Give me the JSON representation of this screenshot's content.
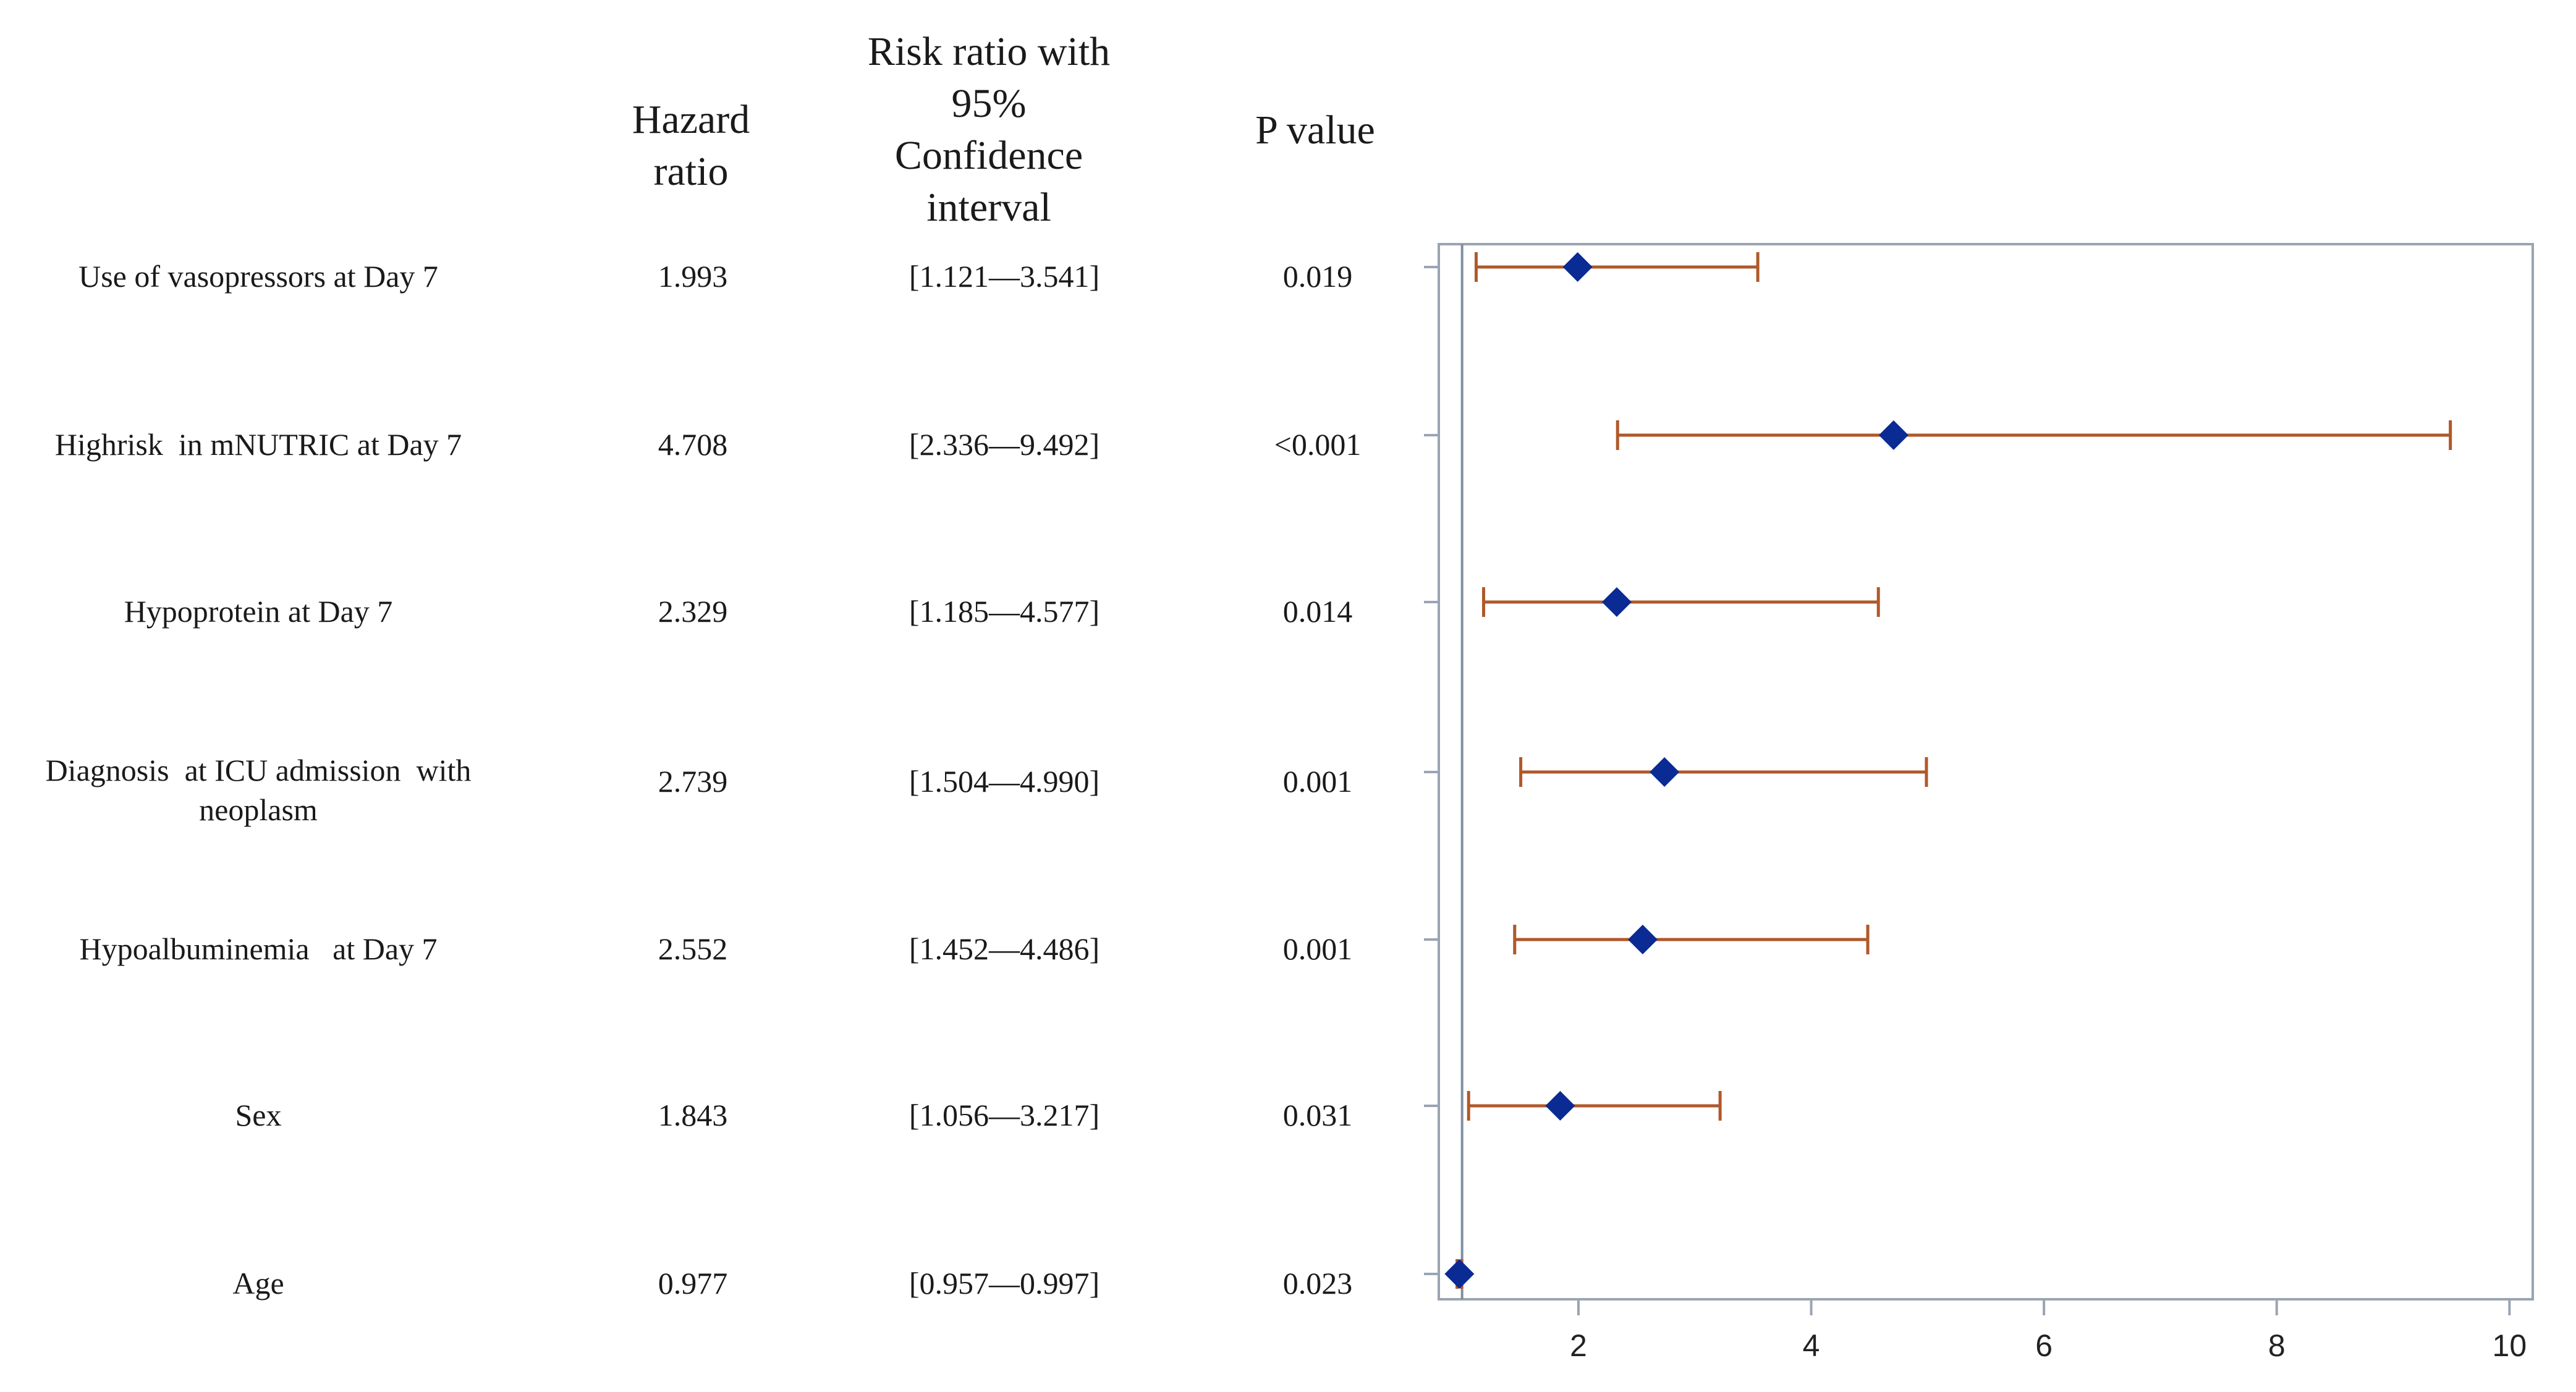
{
  "headers": {
    "hazard": [
      "Hazard",
      "ratio"
    ],
    "ci": [
      "Risk ratio with",
      "95%",
      "Confidence",
      "interval"
    ],
    "pvalue": [
      "P value"
    ]
  },
  "rows": [
    {
      "label": [
        "Use of vasopressors at Day 7"
      ],
      "hr": "1.993",
      "ci": "[1.121—3.541]",
      "p": "0.019"
    },
    {
      "label": [
        "Highrisk  in mNUTRIC at Day 7"
      ],
      "hr": "4.708",
      "ci": "[2.336—9.492]",
      "p": "<0.001"
    },
    {
      "label": [
        "Hypoprotein at Day 7"
      ],
      "hr": "2.329",
      "ci": "[1.185—4.577]",
      "p": "0.014"
    },
    {
      "label": [
        "Diagnosis  at ICU admission  with",
        "neoplasm"
      ],
      "hr": "2.739",
      "ci": "[1.504—4.990]",
      "p": "0.001"
    },
    {
      "label": [
        "Hypoalbuminemia   at Day 7"
      ],
      "hr": "2.552",
      "ci": "[1.452—4.486]",
      "p": "0.001"
    },
    {
      "label": [
        "Sex"
      ],
      "hr": "1.843",
      "ci": "[1.056—3.217]",
      "p": "0.031"
    },
    {
      "label": [
        "Age"
      ],
      "hr": "0.977",
      "ci": "[0.957—0.997]",
      "p": "0.023"
    }
  ],
  "chart_data": {
    "type": "forest",
    "title": "",
    "xlabel": "",
    "ylabel": "",
    "xlim": [
      0.8,
      10.2
    ],
    "xticks": [
      2,
      4,
      6,
      8,
      10
    ],
    "reference_line": 1,
    "grid": false,
    "categories": [
      "Use of vasopressors at Day 7",
      "Highrisk  in mNUTRIC at Day 7",
      "Hypoprotein at Day 7",
      "Diagnosis  at ICU admission  with neoplasm",
      "Hypoalbuminemia   at Day 7",
      "Sex",
      "Age"
    ],
    "estimates": [
      1.993,
      4.708,
      2.329,
      2.739,
      2.552,
      1.843,
      0.977
    ],
    "lower": [
      1.121,
      2.336,
      1.185,
      1.504,
      1.452,
      1.056,
      0.957
    ],
    "upper": [
      3.541,
      9.492,
      4.577,
      4.99,
      4.486,
      3.217,
      0.997
    ],
    "colors": {
      "marker": "#0a2a94",
      "interval": "#b0582a",
      "frame": "#9aa4b2",
      "reference": "#7f8da0"
    }
  }
}
